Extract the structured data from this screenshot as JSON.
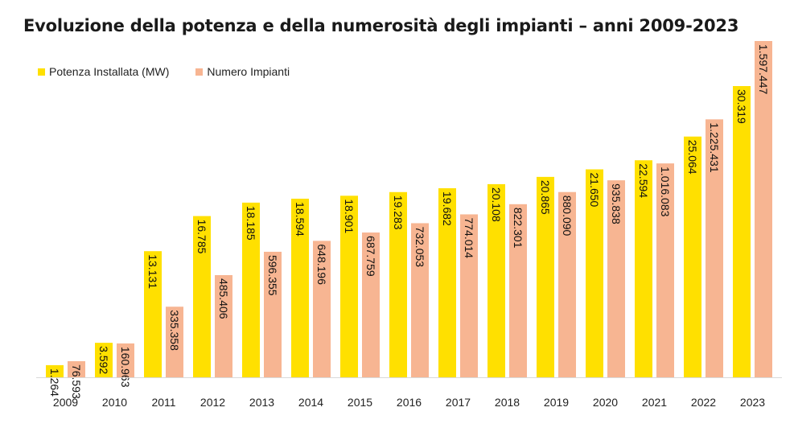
{
  "chart_data": {
    "type": "bar",
    "title": "Evoluzione della potenza e della numerosità degli impianti – anni 2009-2023",
    "categories": [
      "2009",
      "2010",
      "2011",
      "2012",
      "2013",
      "2014",
      "2015",
      "2016",
      "2017",
      "2018",
      "2019",
      "2020",
      "2021",
      "2022",
      "2023"
    ],
    "series": [
      {
        "name": "Potenza Installata (MW)",
        "color": "#ffe000",
        "values": [
          1264,
          3592,
          13131,
          16785,
          18185,
          18594,
          18901,
          19283,
          19682,
          20108,
          20865,
          21650,
          22594,
          25064,
          30319
        ],
        "labels": [
          "1.264",
          "3.592",
          "13.131",
          "16.785",
          "18.185",
          "18.594",
          "18.901",
          "19.283",
          "19.682",
          "20.108",
          "20.865",
          "21.650",
          "22.594",
          "25.064",
          "30.319"
        ]
      },
      {
        "name": "Numero Impianti",
        "color": "#f7b592",
        "values": [
          76593,
          160963,
          335358,
          485406,
          596355,
          648196,
          687759,
          732053,
          774014,
          822301,
          880090,
          935838,
          1016083,
          1225431,
          1597447
        ],
        "labels": [
          "76.593",
          "160.963",
          "335.358",
          "485.406",
          "596.355",
          "648.196",
          "687.759",
          "732.053",
          "774.014",
          "822.301",
          "880.090",
          "935.838",
          "1.016.083",
          "1.225.431",
          "1.597.447"
        ]
      }
    ],
    "legend_position": "top-left",
    "grid": false
  }
}
